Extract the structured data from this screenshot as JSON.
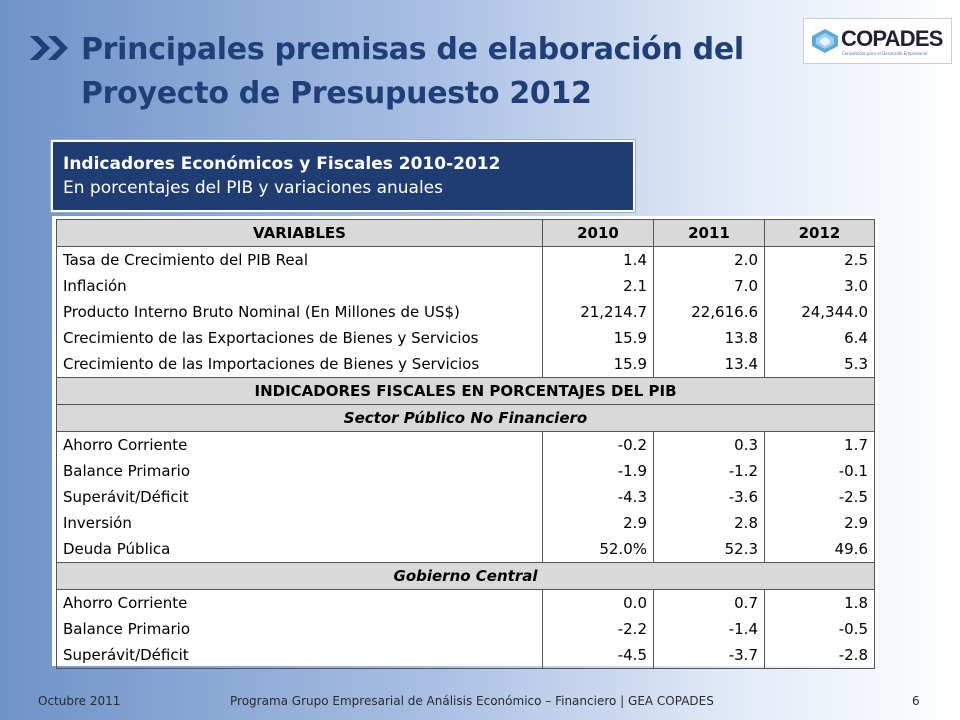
{
  "title": "Principales premisas de elaboración del Proyecto de Presupuesto 2012",
  "logo": {
    "name": "COPADES",
    "tagline": "Consultores para el Desarrollo Empresarial"
  },
  "caption": {
    "line1": "Indicadores Económicos y Fiscales 2010-2012",
    "line2": "En porcentajes del PIB y variaciones anuales"
  },
  "table": {
    "headers": [
      "VARIABLES",
      "2010",
      "2011",
      "2012"
    ],
    "section1_rows": [
      {
        "label": "Tasa de Crecimiento del PIB Real",
        "v2010": "1.4",
        "v2011": "2.0",
        "v2012": "2.5"
      },
      {
        "label": "Inflación",
        "v2010": "2.1",
        "v2011": "7.0",
        "v2012": "3.0"
      },
      {
        "label": "Producto Interno Bruto Nominal (En Millones de US$)",
        "v2010": "21,214.7",
        "v2011": "22,616.6",
        "v2012": "24,344.0"
      },
      {
        "label": "Crecimiento de las Exportaciones de Bienes y Servicios",
        "v2010": "15.9",
        "v2011": "13.8",
        "v2012": "6.4"
      },
      {
        "label": "Crecimiento de las Importaciones de Bienes y Servicios",
        "v2010": "15.9",
        "v2011": "13.4",
        "v2012": "5.3"
      }
    ],
    "fiscal_heading": "INDICADORES FISCALES EN PORCENTAJES DEL PIB",
    "spnf_heading": "Sector Público No Financiero",
    "spnf_rows": [
      {
        "label": "Ahorro Corriente",
        "v2010": "-0.2",
        "v2011": "0.3",
        "v2012": "1.7"
      },
      {
        "label": "Balance Primario",
        "v2010": "-1.9",
        "v2011": "-1.2",
        "v2012": "-0.1"
      },
      {
        "label": "Superávit/Déficit",
        "v2010": "-4.3",
        "v2011": "-3.6",
        "v2012": "-2.5"
      },
      {
        "label": "Inversión",
        "v2010": "2.9",
        "v2011": "2.8",
        "v2012": "2.9"
      },
      {
        "label": "Deuda Pública",
        "v2010": "52.0%",
        "v2011": "52.3",
        "v2012": "49.6"
      }
    ],
    "gc_heading": "Gobierno Central",
    "gc_rows": [
      {
        "label": "Ahorro Corriente",
        "v2010": "0.0",
        "v2011": "0.7",
        "v2012": "1.8"
      },
      {
        "label": "Balance Primario",
        "v2010": "-2.2",
        "v2011": "-1.4",
        "v2012": "-0.5"
      },
      {
        "label": "Superávit/Déficit",
        "v2010": "-4.5",
        "v2011": "-3.7",
        "v2012": "-2.8"
      }
    ]
  },
  "footer": {
    "date": "Octubre 2011",
    "program": "Programa Grupo Empresarial de Análisis Económico – Financiero | GEA COPADES",
    "page": "6"
  },
  "colors": {
    "title": "#1f3f79",
    "caption_bg": "#1f3d72",
    "header_bg": "#d9d9d9"
  }
}
